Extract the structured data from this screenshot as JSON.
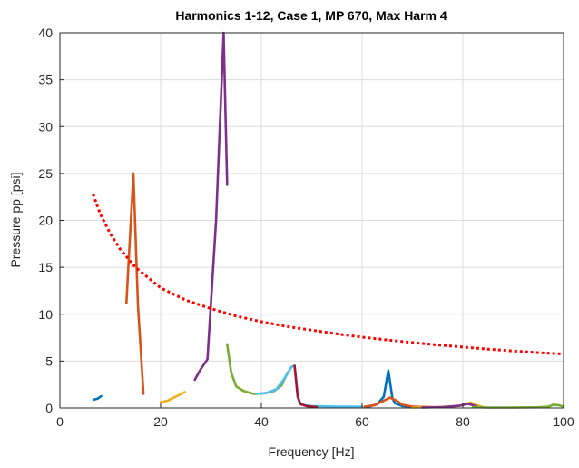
{
  "chart_data": {
    "type": "line",
    "title": "Harmonics 1-12, Case 1, MP 670, Max Harm 4",
    "xlabel": "Frequency [Hz]",
    "ylabel": "Pressure pp [psi]",
    "xlim": [
      0,
      100
    ],
    "ylim": [
      0,
      40
    ],
    "xticks": [
      "0",
      "20",
      "40",
      "60",
      "80",
      "100"
    ],
    "yticks": [
      "0",
      "5",
      "10",
      "15",
      "20",
      "25",
      "30",
      "35",
      "40"
    ],
    "grid": true,
    "legend": "none",
    "series": [
      {
        "color": "#0072BD",
        "style": "solid",
        "points": [
          [
            6.8,
            0.9
          ],
          [
            7.5,
            1.0
          ],
          [
            8.2,
            1.25
          ]
        ]
      },
      {
        "color": "#D95319",
        "style": "solid",
        "points": [
          [
            13.2,
            11.2
          ],
          [
            14.6,
            25.0
          ],
          [
            15.5,
            11.0
          ],
          [
            16.6,
            1.5
          ]
        ]
      },
      {
        "color": "#EDB120",
        "style": "solid",
        "points": [
          [
            20.0,
            0.6
          ],
          [
            21.5,
            0.8
          ],
          [
            23.0,
            1.2
          ],
          [
            24.8,
            1.7
          ]
        ]
      },
      {
        "color": "#7E2F8E",
        "style": "solid",
        "points": [
          [
            26.8,
            3.0
          ],
          [
            27.8,
            4.0
          ],
          [
            29.3,
            5.2
          ],
          [
            31.0,
            20.0
          ],
          [
            32.5,
            40.0
          ],
          [
            33.2,
            23.8
          ]
        ]
      },
      {
        "color": "#77AC30",
        "style": "solid",
        "points": [
          [
            33.2,
            6.8
          ],
          [
            34.0,
            3.8
          ],
          [
            35.0,
            2.3
          ],
          [
            36.5,
            1.8
          ],
          [
            38.5,
            1.5
          ],
          [
            40.5,
            1.55
          ],
          [
            42.5,
            1.8
          ],
          [
            44.0,
            2.4
          ],
          [
            45.2,
            3.8
          ]
        ]
      },
      {
        "color": "#4DBEEE",
        "style": "solid",
        "points": [
          [
            39.0,
            1.5
          ],
          [
            41.0,
            1.6
          ],
          [
            43.0,
            2.0
          ],
          [
            44.8,
            3.3
          ],
          [
            46.0,
            4.4
          ],
          [
            46.6,
            4.5
          ],
          [
            47.2,
            1.5
          ],
          [
            47.6,
            0.5
          ],
          [
            48.5,
            0.3
          ],
          [
            50.0,
            0.2
          ],
          [
            55.0,
            0.15
          ],
          [
            60.0,
            0.15
          ]
        ]
      },
      {
        "color": "#A2142F",
        "style": "solid",
        "points": [
          [
            46.6,
            4.5
          ],
          [
            47.2,
            1.2
          ],
          [
            47.8,
            0.4
          ],
          [
            49.0,
            0.2
          ],
          [
            51.0,
            0.1
          ]
        ]
      },
      {
        "color": "#0072BD",
        "style": "solid",
        "points": [
          [
            61.0,
            0.1
          ],
          [
            63.0,
            0.4
          ],
          [
            64.3,
            1.2
          ],
          [
            65.2,
            4.0
          ],
          [
            66.0,
            1.1
          ],
          [
            66.5,
            0.5
          ],
          [
            68.0,
            0.2
          ],
          [
            72.0,
            0.1
          ]
        ]
      },
      {
        "color": "#D95319",
        "style": "solid",
        "points": [
          [
            60.5,
            0.15
          ],
          [
            62.5,
            0.3
          ],
          [
            64.0,
            0.7
          ],
          [
            65.5,
            1.1
          ],
          [
            66.8,
            0.8
          ],
          [
            68.0,
            0.35
          ],
          [
            70.0,
            0.15
          ],
          [
            74.0,
            0.1
          ]
        ]
      },
      {
        "color": "#EDB120",
        "style": "solid",
        "points": [
          [
            70.0,
            0.05
          ],
          [
            75.0,
            0.1
          ],
          [
            79.0,
            0.2
          ],
          [
            80.5,
            0.4
          ],
          [
            81.5,
            0.6
          ],
          [
            82.5,
            0.35
          ],
          [
            84.0,
            0.1
          ]
        ]
      },
      {
        "color": "#7E2F8E",
        "style": "solid",
        "points": [
          [
            72.0,
            0.05
          ],
          [
            76.0,
            0.1
          ],
          [
            79.5,
            0.25
          ],
          [
            81.0,
            0.45
          ],
          [
            82.0,
            0.3
          ],
          [
            83.0,
            0.1
          ]
        ]
      },
      {
        "color": "#77AC30",
        "style": "solid",
        "points": [
          [
            82.0,
            0.1
          ],
          [
            85.0,
            0.05
          ],
          [
            90.0,
            0.05
          ],
          [
            95.0,
            0.08
          ],
          [
            97.0,
            0.15
          ],
          [
            98.0,
            0.35
          ],
          [
            99.0,
            0.3
          ],
          [
            100.0,
            0.15
          ]
        ]
      },
      {
        "color": "#FF0000",
        "style": "dotted",
        "points": [
          [
            6.6,
            22.8
          ],
          [
            8,
            20.7
          ],
          [
            10,
            18.6
          ],
          [
            12,
            16.9
          ],
          [
            15,
            15.0
          ],
          [
            20,
            12.8
          ],
          [
            25,
            11.5
          ],
          [
            30,
            10.6
          ],
          [
            35,
            9.8
          ],
          [
            40,
            9.2
          ],
          [
            45,
            8.7
          ],
          [
            50,
            8.3
          ],
          [
            55,
            7.9
          ],
          [
            60,
            7.55
          ],
          [
            65,
            7.25
          ],
          [
            70,
            6.98
          ],
          [
            75,
            6.72
          ],
          [
            80,
            6.5
          ],
          [
            85,
            6.28
          ],
          [
            90,
            6.08
          ],
          [
            95,
            5.9
          ],
          [
            100,
            5.75
          ]
        ]
      }
    ]
  }
}
